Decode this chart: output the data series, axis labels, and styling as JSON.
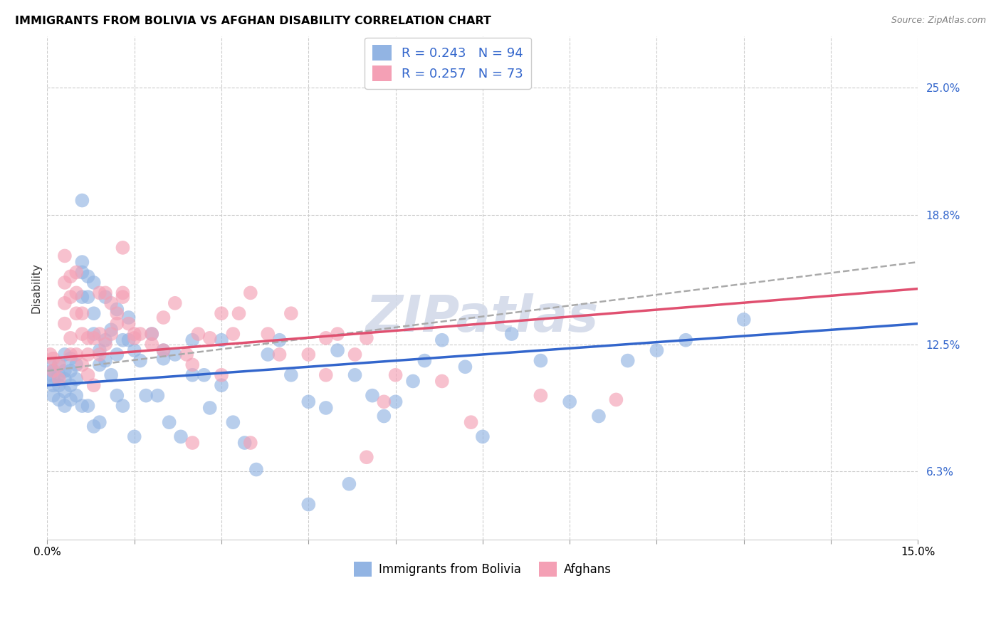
{
  "title": "IMMIGRANTS FROM BOLIVIA VS AFGHAN DISABILITY CORRELATION CHART",
  "source": "Source: ZipAtlas.com",
  "ylabel": "Disability",
  "ytick_values": [
    0.063,
    0.125,
    0.188,
    0.25
  ],
  "xlim": [
    0.0,
    0.15
  ],
  "ylim": [
    0.03,
    0.275
  ],
  "bolivia_R": 0.243,
  "bolivia_N": 94,
  "afghan_R": 0.257,
  "afghan_N": 73,
  "bolivia_color": "#92b4e3",
  "afghan_color": "#f4a0b5",
  "bolivia_line_color": "#3366cc",
  "afghan_line_color": "#e05070",
  "confidence_line_color": "#aaaaaa",
  "legend_label_bolivia": "Immigrants from Bolivia",
  "legend_label_afghan": "Afghans",
  "watermark": "ZIPatlas",
  "bolivia_x": [
    0.0005,
    0.0005,
    0.001,
    0.001,
    0.001,
    0.001,
    0.002,
    0.002,
    0.002,
    0.002,
    0.003,
    0.003,
    0.003,
    0.003,
    0.003,
    0.004,
    0.004,
    0.004,
    0.004,
    0.005,
    0.005,
    0.005,
    0.006,
    0.006,
    0.006,
    0.006,
    0.007,
    0.007,
    0.007,
    0.008,
    0.008,
    0.008,
    0.009,
    0.009,
    0.009,
    0.01,
    0.01,
    0.011,
    0.011,
    0.012,
    0.012,
    0.013,
    0.013,
    0.014,
    0.015,
    0.015,
    0.016,
    0.017,
    0.018,
    0.019,
    0.02,
    0.021,
    0.022,
    0.023,
    0.025,
    0.027,
    0.028,
    0.03,
    0.032,
    0.034,
    0.036,
    0.038,
    0.04,
    0.042,
    0.045,
    0.048,
    0.05,
    0.053,
    0.056,
    0.058,
    0.06,
    0.063,
    0.065,
    0.068,
    0.072,
    0.075,
    0.08,
    0.085,
    0.09,
    0.095,
    0.1,
    0.105,
    0.11,
    0.12,
    0.045,
    0.052,
    0.006,
    0.008,
    0.01,
    0.012,
    0.014,
    0.02,
    0.025,
    0.03
  ],
  "bolivia_y": [
    0.115,
    0.11,
    0.112,
    0.108,
    0.105,
    0.1,
    0.115,
    0.11,
    0.105,
    0.098,
    0.12,
    0.112,
    0.108,
    0.102,
    0.095,
    0.118,
    0.112,
    0.105,
    0.098,
    0.115,
    0.108,
    0.1,
    0.195,
    0.165,
    0.148,
    0.095,
    0.158,
    0.148,
    0.095,
    0.14,
    0.13,
    0.085,
    0.122,
    0.115,
    0.087,
    0.127,
    0.117,
    0.132,
    0.11,
    0.12,
    0.1,
    0.127,
    0.095,
    0.127,
    0.122,
    0.08,
    0.117,
    0.1,
    0.13,
    0.1,
    0.122,
    0.087,
    0.12,
    0.08,
    0.127,
    0.11,
    0.094,
    0.127,
    0.087,
    0.077,
    0.064,
    0.12,
    0.127,
    0.11,
    0.097,
    0.094,
    0.122,
    0.11,
    0.1,
    0.09,
    0.097,
    0.107,
    0.117,
    0.127,
    0.114,
    0.08,
    0.13,
    0.117,
    0.097,
    0.09,
    0.117,
    0.122,
    0.127,
    0.137,
    0.047,
    0.057,
    0.16,
    0.155,
    0.148,
    0.142,
    0.138,
    0.118,
    0.11,
    0.105
  ],
  "afghan_x": [
    0.0005,
    0.001,
    0.001,
    0.002,
    0.002,
    0.003,
    0.003,
    0.003,
    0.004,
    0.004,
    0.004,
    0.005,
    0.005,
    0.005,
    0.006,
    0.006,
    0.007,
    0.007,
    0.008,
    0.009,
    0.009,
    0.01,
    0.011,
    0.012,
    0.013,
    0.014,
    0.015,
    0.016,
    0.018,
    0.02,
    0.022,
    0.024,
    0.026,
    0.028,
    0.03,
    0.032,
    0.033,
    0.035,
    0.038,
    0.04,
    0.042,
    0.045,
    0.048,
    0.05,
    0.053,
    0.055,
    0.058,
    0.06,
    0.068,
    0.073,
    0.013,
    0.025,
    0.035,
    0.055,
    0.085,
    0.048,
    0.003,
    0.004,
    0.005,
    0.006,
    0.007,
    0.008,
    0.009,
    0.01,
    0.011,
    0.012,
    0.013,
    0.015,
    0.018,
    0.02,
    0.025,
    0.03,
    0.098
  ],
  "afghan_y": [
    0.12,
    0.118,
    0.112,
    0.115,
    0.108,
    0.168,
    0.155,
    0.145,
    0.158,
    0.148,
    0.12,
    0.16,
    0.15,
    0.14,
    0.14,
    0.13,
    0.128,
    0.12,
    0.128,
    0.15,
    0.13,
    0.15,
    0.145,
    0.14,
    0.148,
    0.135,
    0.128,
    0.13,
    0.13,
    0.138,
    0.145,
    0.12,
    0.13,
    0.128,
    0.14,
    0.13,
    0.14,
    0.15,
    0.13,
    0.12,
    0.14,
    0.12,
    0.128,
    0.13,
    0.12,
    0.128,
    0.097,
    0.11,
    0.107,
    0.087,
    0.172,
    0.077,
    0.077,
    0.07,
    0.1,
    0.11,
    0.135,
    0.128,
    0.12,
    0.115,
    0.11,
    0.105,
    0.12,
    0.125,
    0.13,
    0.135,
    0.15,
    0.13,
    0.125,
    0.122,
    0.115,
    0.11,
    0.098
  ]
}
